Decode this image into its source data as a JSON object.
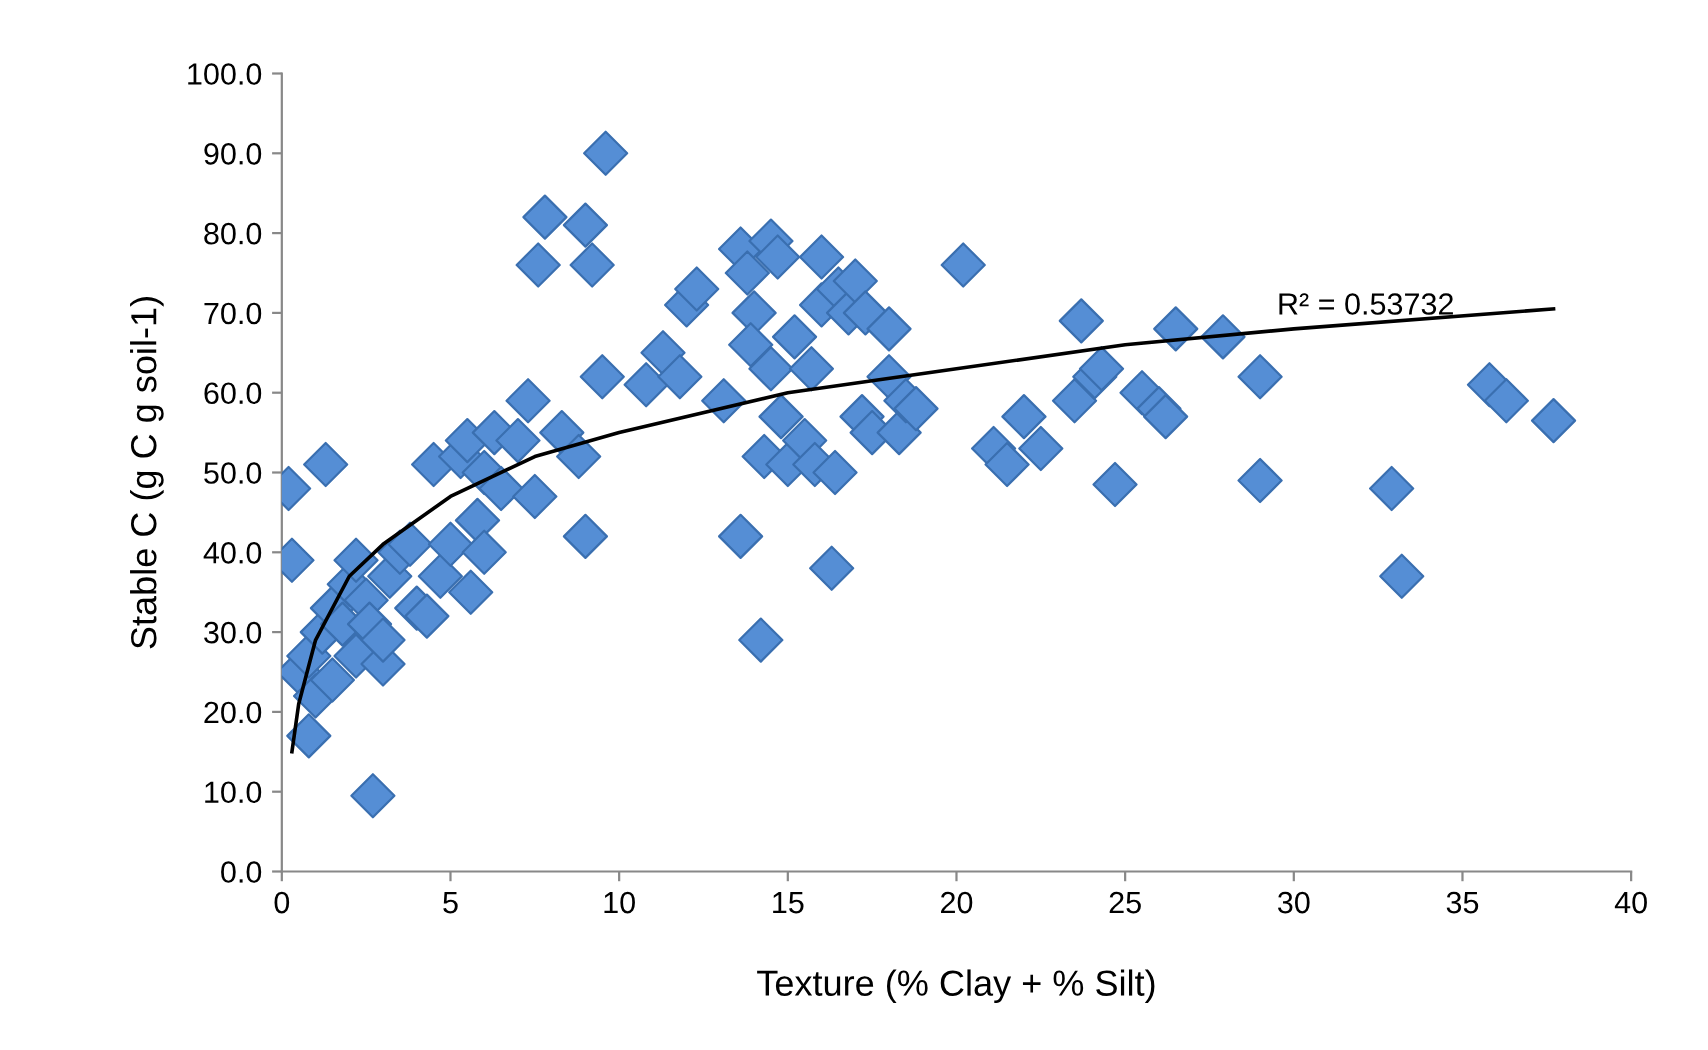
{
  "chart_data": {
    "type": "scatter",
    "xlabel": "Texture (% Clay + % Silt)",
    "ylabel": "Stable C (g C g soil-1)",
    "xlim": [
      0,
      40
    ],
    "xticks": [
      0,
      5,
      10,
      15,
      20,
      25,
      30,
      35,
      40
    ],
    "ylim": [
      0,
      100
    ],
    "yticks": [
      {
        "value": 0,
        "label": "0.0"
      },
      {
        "value": 10,
        "label": "10.0"
      },
      {
        "value": 20,
        "label": "20.0"
      },
      {
        "value": 30,
        "label": "30.0"
      },
      {
        "value": 40,
        "label": "40.0"
      },
      {
        "value": 50,
        "label": "50.0"
      },
      {
        "value": 60,
        "label": "60.0"
      },
      {
        "value": 70,
        "label": "70.0"
      },
      {
        "value": 80,
        "label": "80.0"
      },
      {
        "value": 90,
        "label": "90.0"
      },
      {
        "value": 100,
        "label": "100.0"
      }
    ],
    "grid": false,
    "series": [
      {
        "marker": "diamond",
        "color": "#558ed5",
        "x": [
          0.2,
          0.3,
          1.3,
          0.8,
          0.5,
          0.8,
          1,
          1.5,
          1.2,
          1.5,
          1.8,
          2,
          2.2,
          2.5,
          2.2,
          2.6,
          3,
          3,
          3.2,
          3.5,
          3.8,
          4,
          4.3,
          4.5,
          4.7,
          5,
          5.3,
          5.5,
          5.6,
          5.8,
          6,
          6,
          6.3,
          6.5,
          7,
          7.3,
          7.5,
          7.6,
          7.8,
          8.3,
          8.8,
          9,
          9,
          9.2,
          9.5,
          9.6,
          10.8,
          11.3,
          11.8,
          12,
          12.3,
          2.7,
          13.1,
          13.6,
          13.6,
          13.8,
          14,
          13.9,
          14.3,
          14.2,
          14.5,
          14.7,
          14.5,
          14.8,
          15,
          15.2,
          15.5,
          16,
          16,
          15.7,
          15.8,
          16.3,
          16.4,
          16.5,
          16.8,
          17,
          17.3,
          17.2,
          17.5,
          18,
          18,
          18.3,
          18.5,
          18.8,
          20.2,
          21.1,
          21.5,
          22,
          22.5,
          23.5,
          23.7,
          24.1,
          24.3,
          24.7,
          25.5,
          26,
          26.5,
          26.2,
          27.9,
          29,
          29,
          32.9,
          33.2,
          35.8,
          36.3,
          37.7
        ],
        "values": [
          48,
          39,
          51,
          17,
          25,
          27,
          22,
          24,
          30,
          33,
          31,
          36,
          39,
          34,
          27,
          31,
          26,
          29,
          37,
          40,
          41,
          33,
          32,
          51,
          37,
          41,
          52,
          54,
          35,
          44,
          40,
          50,
          55,
          48,
          54,
          59,
          47,
          76,
          82,
          55,
          52,
          42,
          81,
          76,
          62,
          90,
          61,
          65,
          62,
          71,
          73,
          9.5,
          59,
          42,
          78,
          75,
          70,
          66,
          52,
          29,
          79,
          77,
          63,
          57,
          51,
          67,
          54,
          77,
          71,
          63,
          51,
          38,
          50,
          73,
          70,
          74,
          70,
          57,
          55,
          68,
          62,
          55,
          59,
          58,
          76,
          53,
          51,
          57,
          53,
          59,
          69,
          62,
          63,
          48.5,
          60,
          58,
          68,
          57,
          67,
          62,
          49,
          48,
          37,
          61,
          59,
          56.5
        ]
      },
      {
        "type": "line",
        "marker": "none",
        "color": "#000000",
        "x": [
          0.3,
          0.5,
          1,
          2,
          3,
          5,
          7.5,
          10,
          15,
          20,
          25,
          30,
          37.7
        ],
        "values": [
          15,
          21,
          29,
          37,
          41,
          47,
          52,
          55,
          60,
          63,
          66,
          68,
          70.5
        ]
      }
    ],
    "annotations": [
      {
        "text": "R² = 0.53732",
        "x": 29.5,
        "y": 69
      }
    ]
  }
}
